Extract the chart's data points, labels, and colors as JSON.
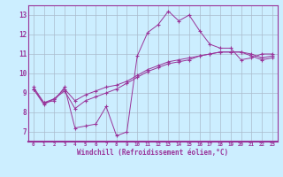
{
  "xlabel": "Windchill (Refroidissement éolien,°C)",
  "bg_color": "#cceeff",
  "grid_color": "#aabbcc",
  "line_color": "#993399",
  "xlim": [
    -0.5,
    23.5
  ],
  "ylim": [
    6.5,
    13.5
  ],
  "xticks": [
    0,
    1,
    2,
    3,
    4,
    5,
    6,
    7,
    8,
    9,
    10,
    11,
    12,
    13,
    14,
    15,
    16,
    17,
    18,
    19,
    20,
    21,
    22,
    23
  ],
  "yticks": [
    7,
    8,
    9,
    10,
    11,
    12,
    13
  ],
  "series1": [
    9.3,
    8.5,
    8.6,
    9.3,
    7.2,
    7.3,
    7.4,
    8.3,
    6.8,
    7.0,
    10.9,
    12.1,
    12.5,
    13.2,
    12.7,
    13.0,
    12.2,
    11.5,
    11.3,
    11.3,
    10.7,
    10.8,
    11.0,
    11.0
  ],
  "series2": [
    9.2,
    8.5,
    8.7,
    9.2,
    8.6,
    8.9,
    9.1,
    9.3,
    9.4,
    9.6,
    9.9,
    10.2,
    10.4,
    10.6,
    10.7,
    10.8,
    10.9,
    11.0,
    11.1,
    11.1,
    11.1,
    11.0,
    10.8,
    10.9
  ],
  "series3": [
    9.2,
    8.4,
    8.7,
    9.1,
    8.2,
    8.6,
    8.8,
    9.0,
    9.2,
    9.5,
    9.8,
    10.1,
    10.3,
    10.5,
    10.6,
    10.7,
    10.9,
    11.0,
    11.1,
    11.1,
    11.1,
    10.9,
    10.7,
    10.8
  ]
}
